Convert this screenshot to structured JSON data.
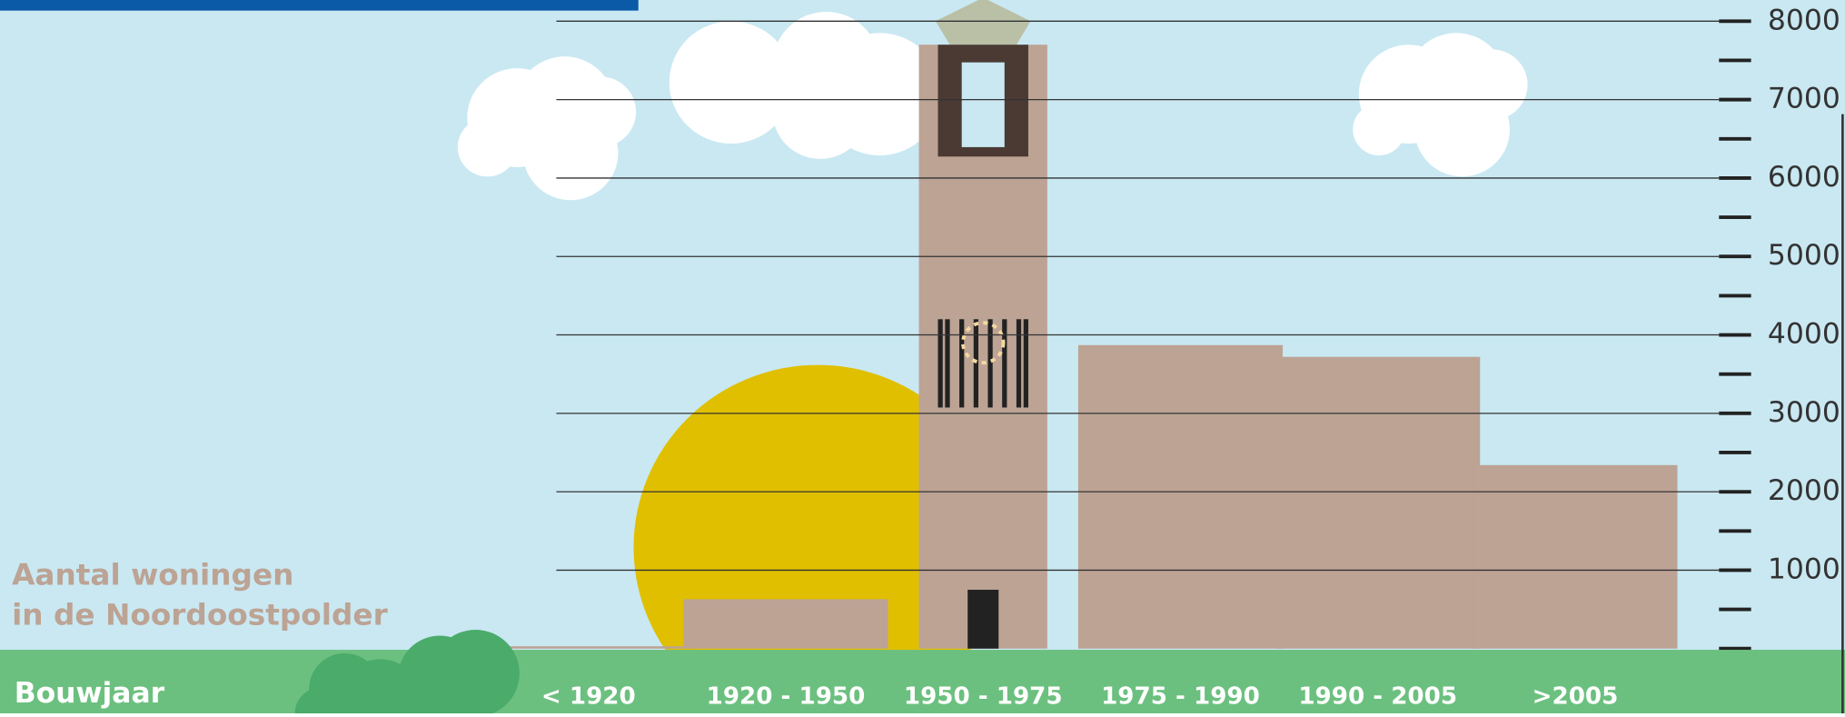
{
  "chart_data": {
    "type": "bar",
    "title_lines": [
      "Aantal woningen",
      "in de Noordoostpolder"
    ],
    "x_label": "Bouwjaar",
    "categories": [
      "< 1920",
      "1920 - 1950",
      "1950 - 1975",
      "1975 - 1990",
      "1990 - 2005",
      ">2005"
    ],
    "values": [
      30,
      630,
      7700,
      3870,
      3720,
      2340
    ],
    "color": "#bca394",
    "ylim": [
      0,
      8000
    ],
    "yticks": [
      1000,
      2000,
      3000,
      4000,
      5000,
      6000,
      7000,
      8000
    ],
    "minor_yticks": [
      0,
      500,
      1500,
      2500,
      3500,
      4500,
      5500,
      6500,
      7500
    ],
    "grid": true
  }
}
